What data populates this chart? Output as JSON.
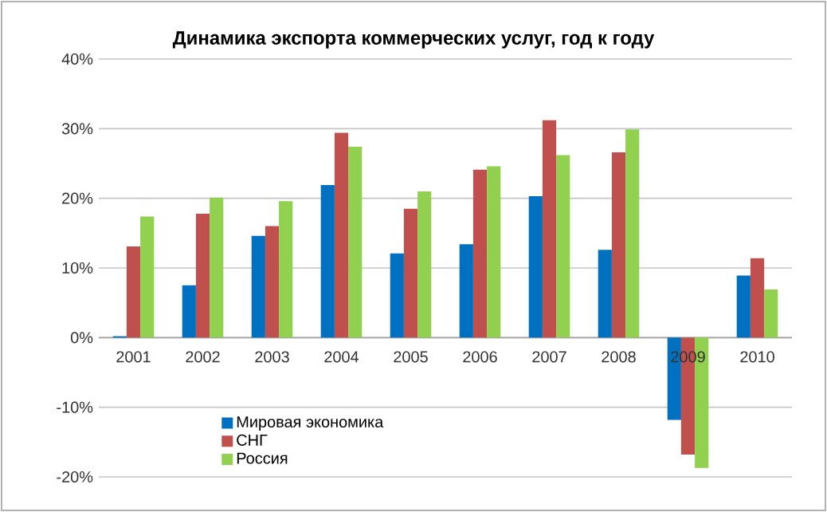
{
  "chart_data": {
    "type": "bar",
    "title": "Динамика экспорта коммерческих услуг, год к году",
    "categories": [
      "2001",
      "2002",
      "2003",
      "2004",
      "2005",
      "2006",
      "2007",
      "2008",
      "2009",
      "2010"
    ],
    "series": [
      {
        "name": "Мировая экономика",
        "color": "#0070c0",
        "values": [
          0.2,
          7.5,
          14.6,
          21.9,
          12.1,
          13.4,
          20.3,
          12.6,
          -11.8,
          8.9
        ]
      },
      {
        "name": "СНГ",
        "color": "#c0504d",
        "values": [
          13.1,
          17.8,
          16.0,
          29.4,
          18.5,
          24.1,
          31.2,
          26.6,
          -16.8,
          11.4
        ]
      },
      {
        "name": "Россия",
        "color": "#92d050",
        "values": [
          17.4,
          20.1,
          19.6,
          27.4,
          21.0,
          24.6,
          26.2,
          29.9,
          -18.7,
          6.9
        ]
      }
    ],
    "ylim": [
      -20,
      40
    ],
    "yticks": [
      {
        "value": -20,
        "label": "-20%"
      },
      {
        "value": -10,
        "label": "-10%"
      },
      {
        "value": 0,
        "label": "0%"
      },
      {
        "value": 10,
        "label": "10%"
      },
      {
        "value": 20,
        "label": "20%"
      },
      {
        "value": 30,
        "label": "30%"
      },
      {
        "value": 40,
        "label": "40%"
      }
    ],
    "grid": "y",
    "legend": "bottom left"
  }
}
